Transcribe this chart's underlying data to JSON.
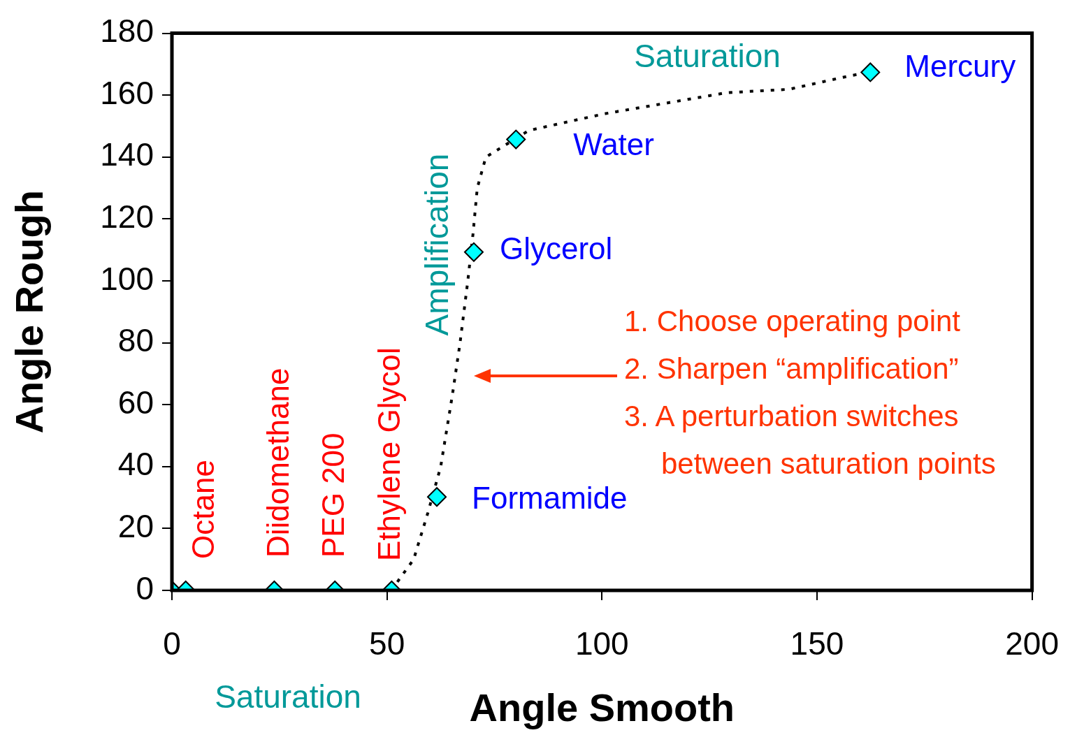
{
  "chart_data": {
    "type": "scatter",
    "xlabel": "Angle Smooth",
    "ylabel": "Angle Rough",
    "xlim": [
      0,
      200
    ],
    "xticks": [
      0,
      50,
      100,
      150,
      200
    ],
    "ylim": [
      0,
      180
    ],
    "yticks": [
      0,
      20,
      40,
      60,
      80,
      100,
      120,
      140,
      160,
      180
    ],
    "grid": false,
    "legend": false,
    "marker": "diamond",
    "series": [
      {
        "type": "line",
        "color": "#000000",
        "line_style": "dotted",
        "marker": "none",
        "x": [
          51,
          56.2,
          59.5,
          62.5,
          65.2,
          67,
          68.8,
          70,
          71,
          73,
          83,
          100.6,
          129,
          143.5,
          157.8,
          162.4
        ],
        "values": [
          0,
          10,
          25,
          40,
          63,
          80,
          100,
          115,
          130,
          140,
          148.6,
          154,
          160.8,
          161.9,
          166.3,
          167.4
        ]
      },
      {
        "type": "scatter",
        "color": "#00ffff",
        "x": [
          0,
          3.2,
          23.8,
          37.9,
          51.1,
          61.6,
          70.2,
          80,
          162.4
        ],
        "values": [
          0,
          0,
          0,
          0,
          0,
          30.2,
          109.3,
          145.7,
          167.4
        ]
      }
    ],
    "annotations": [
      {
        "text": "Octane",
        "x": 3.2,
        "y": 0
      },
      {
        "text": "Diidomethane",
        "x": 23.8,
        "y": 0
      },
      {
        "text": "PEG 200",
        "x": 37.9,
        "y": 0
      },
      {
        "text": "Ethylene Glycol",
        "x": 51.1,
        "y": 0
      },
      {
        "text": "Formamide",
        "x": 61.6,
        "y": 30.2
      },
      {
        "text": "Glycerol",
        "x": 70.2,
        "y": 109.3
      },
      {
        "text": "Water",
        "x": 80,
        "y": 145.7
      },
      {
        "text": "Mercury",
        "x": 162.4,
        "y": 167.4
      },
      "Saturation",
      "Saturation",
      "Amplification",
      "1. Choose operating point",
      "2. Sharpen “amplification”",
      "3. A perturbation switches between saturation points"
    ]
  }
}
